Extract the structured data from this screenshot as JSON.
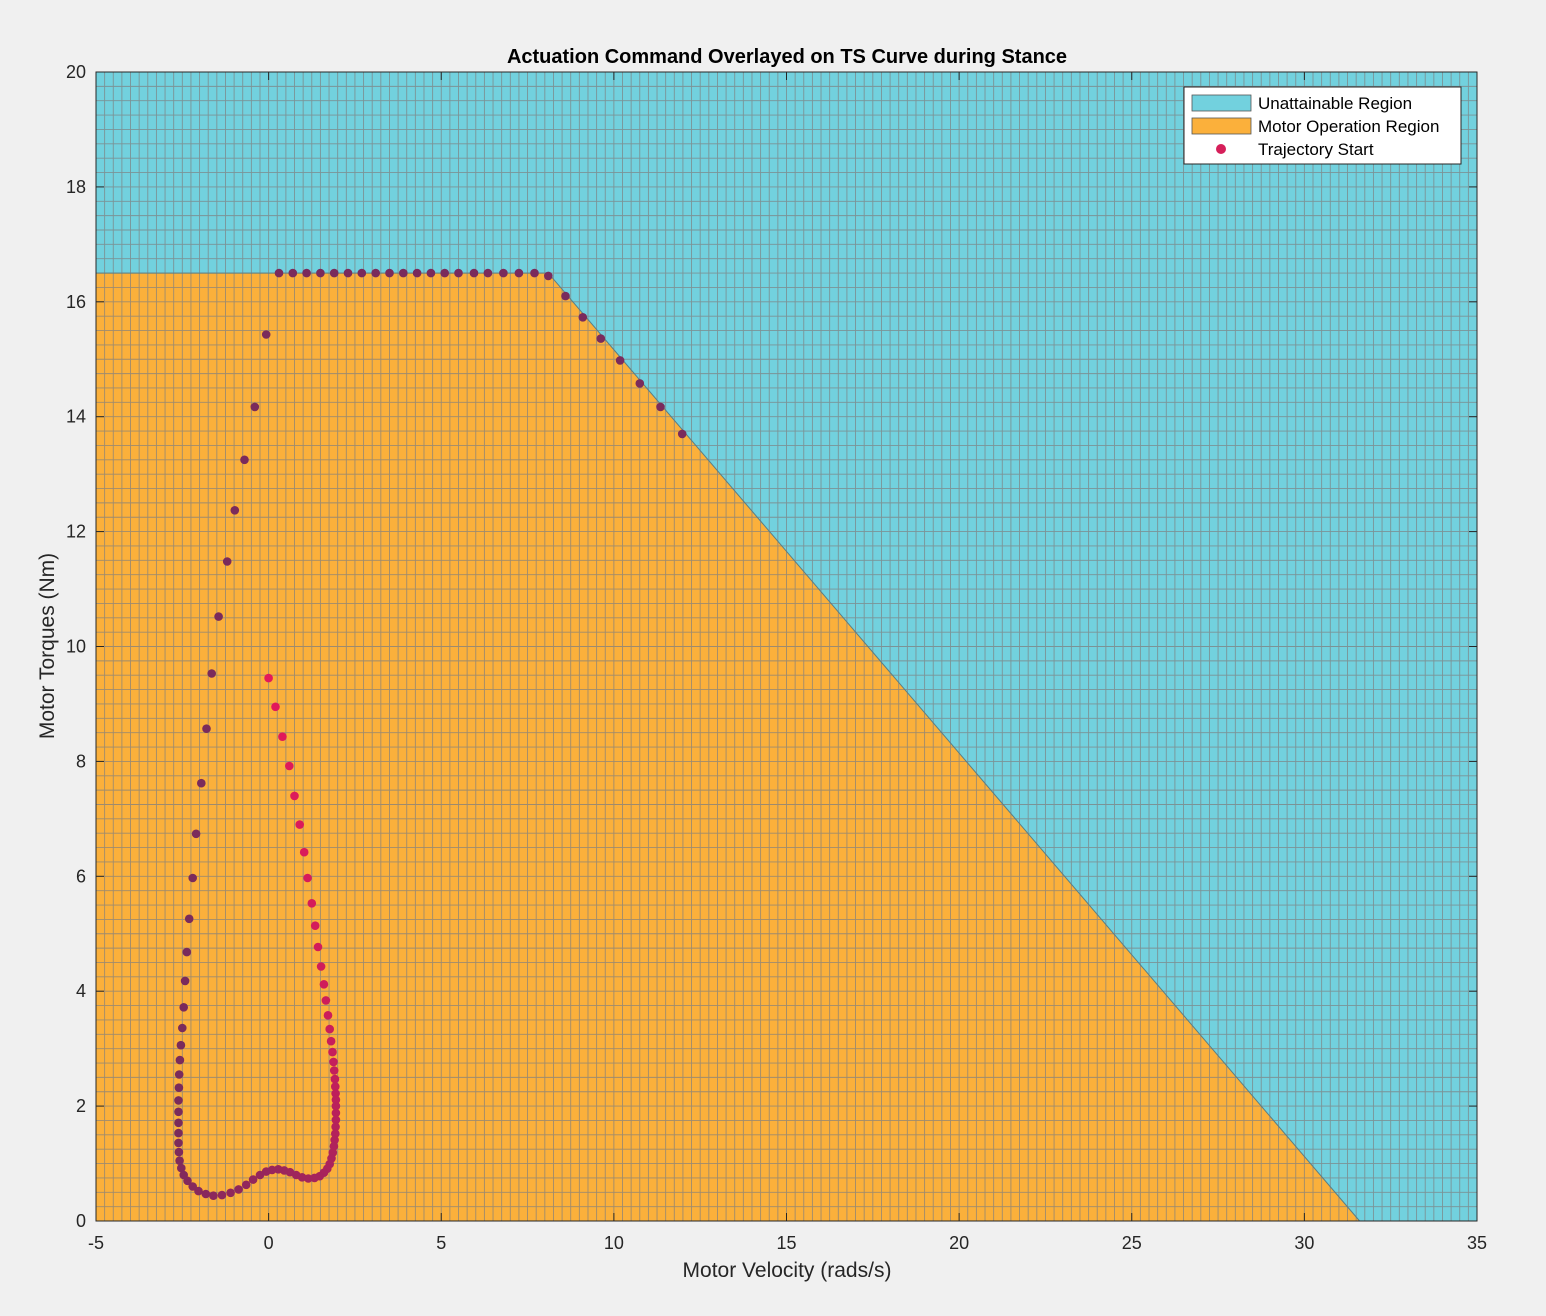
{
  "chart_data": {
    "type": "scatter",
    "title": "Actuation Command Overlayed on TS Curve during Stance",
    "xlabel": "Motor Velocity (rads/s)",
    "ylabel": "Motor Torques (Nm)",
    "xlim": [
      -5,
      35
    ],
    "ylim": [
      0,
      20
    ],
    "xticks": [
      -5,
      0,
      5,
      10,
      15,
      20,
      25,
      30,
      35
    ],
    "yticks": [
      0,
      2,
      4,
      6,
      8,
      10,
      12,
      14,
      16,
      18,
      20
    ],
    "grid": true,
    "legend": {
      "placement": "top-right",
      "entries": [
        {
          "label": "Unattainable Region",
          "color": "#72d1de",
          "kind": "patch"
        },
        {
          "label": "Motor Operation Region",
          "color": "#fbb03b",
          "kind": "patch"
        },
        {
          "label": "Trajectory Start",
          "color": "#d61f5a",
          "kind": "marker"
        }
      ]
    },
    "regions": [
      {
        "name": "Unattainable Region",
        "color": "#72d1de",
        "boundary": [
          [
            -5,
            20
          ],
          [
            35,
            20
          ],
          [
            35,
            0
          ]
        ]
      },
      {
        "name": "Motor Operation Region",
        "color": "#fbb03b",
        "boundary": [
          [
            -5,
            0
          ],
          [
            -5,
            16.5
          ],
          [
            8.1,
            16.5
          ],
          [
            31.6,
            0
          ]
        ]
      }
    ],
    "series": [
      {
        "name": "Trajectory Start",
        "color_start": "#e3195b",
        "color_end": "#7a2b5c",
        "points": [
          [
            0.0,
            9.45
          ],
          [
            0.2,
            8.95
          ],
          [
            0.4,
            8.43
          ],
          [
            0.6,
            7.92
          ],
          [
            0.75,
            7.4
          ],
          [
            0.9,
            6.9
          ],
          [
            1.03,
            6.42
          ],
          [
            1.13,
            5.97
          ],
          [
            1.25,
            5.53
          ],
          [
            1.35,
            5.14
          ],
          [
            1.43,
            4.77
          ],
          [
            1.52,
            4.43
          ],
          [
            1.6,
            4.12
          ],
          [
            1.66,
            3.84
          ],
          [
            1.72,
            3.58
          ],
          [
            1.77,
            3.34
          ],
          [
            1.81,
            3.13
          ],
          [
            1.85,
            2.94
          ],
          [
            1.88,
            2.77
          ],
          [
            1.9,
            2.62
          ],
          [
            1.92,
            2.47
          ],
          [
            1.93,
            2.34
          ],
          [
            1.94,
            2.22
          ],
          [
            1.95,
            2.11
          ],
          [
            1.95,
            2.0
          ],
          [
            1.95,
            1.88
          ],
          [
            1.95,
            1.76
          ],
          [
            1.94,
            1.64
          ],
          [
            1.93,
            1.52
          ],
          [
            1.91,
            1.41
          ],
          [
            1.89,
            1.3
          ],
          [
            1.86,
            1.19
          ],
          [
            1.82,
            1.09
          ],
          [
            1.77,
            0.99
          ],
          [
            1.7,
            0.91
          ],
          [
            1.6,
            0.84
          ],
          [
            1.48,
            0.78
          ],
          [
            1.33,
            0.75
          ],
          [
            1.15,
            0.74
          ],
          [
            0.97,
            0.76
          ],
          [
            0.8,
            0.8
          ],
          [
            0.62,
            0.85
          ],
          [
            0.45,
            0.88
          ],
          [
            0.28,
            0.9
          ],
          [
            0.1,
            0.89
          ],
          [
            -0.07,
            0.86
          ],
          [
            -0.25,
            0.8
          ],
          [
            -0.45,
            0.72
          ],
          [
            -0.65,
            0.63
          ],
          [
            -0.87,
            0.55
          ],
          [
            -1.1,
            0.49
          ],
          [
            -1.35,
            0.45
          ],
          [
            -1.6,
            0.44
          ],
          [
            -1.82,
            0.47
          ],
          [
            -2.03,
            0.52
          ],
          [
            -2.2,
            0.6
          ],
          [
            -2.35,
            0.7
          ],
          [
            -2.46,
            0.8
          ],
          [
            -2.53,
            0.92
          ],
          [
            -2.58,
            1.05
          ],
          [
            -2.6,
            1.2
          ],
          [
            -2.61,
            1.36
          ],
          [
            -2.61,
            1.53
          ],
          [
            -2.61,
            1.71
          ],
          [
            -2.61,
            1.9
          ],
          [
            -2.61,
            2.1
          ],
          [
            -2.6,
            2.32
          ],
          [
            -2.59,
            2.55
          ],
          [
            -2.57,
            2.8
          ],
          [
            -2.54,
            3.06
          ],
          [
            -2.5,
            3.36
          ],
          [
            -2.46,
            3.72
          ],
          [
            -2.42,
            4.18
          ],
          [
            -2.37,
            4.68
          ],
          [
            -2.3,
            5.26
          ],
          [
            -2.2,
            5.97
          ],
          [
            -2.1,
            6.74
          ],
          [
            -1.95,
            7.62
          ],
          [
            -1.8,
            8.57
          ],
          [
            -1.65,
            9.53
          ],
          [
            -1.45,
            10.52
          ],
          [
            -1.2,
            11.48
          ],
          [
            -0.98,
            12.37
          ],
          [
            -0.7,
            13.25
          ],
          [
            -0.4,
            14.17
          ],
          [
            -0.07,
            15.43
          ],
          [
            0.3,
            16.5
          ],
          [
            0.7,
            16.5
          ],
          [
            1.1,
            16.5
          ],
          [
            1.5,
            16.5
          ],
          [
            1.9,
            16.5
          ],
          [
            2.3,
            16.5
          ],
          [
            2.7,
            16.5
          ],
          [
            3.1,
            16.5
          ],
          [
            3.5,
            16.5
          ],
          [
            3.9,
            16.5
          ],
          [
            4.3,
            16.5
          ],
          [
            4.7,
            16.5
          ],
          [
            5.1,
            16.5
          ],
          [
            5.5,
            16.5
          ],
          [
            5.95,
            16.5
          ],
          [
            6.35,
            16.5
          ],
          [
            6.8,
            16.5
          ],
          [
            7.25,
            16.5
          ],
          [
            7.7,
            16.5
          ],
          [
            8.1,
            16.45
          ],
          [
            8.6,
            16.1
          ],
          [
            9.1,
            15.73
          ],
          [
            9.62,
            15.36
          ],
          [
            10.18,
            14.98
          ],
          [
            10.75,
            14.58
          ],
          [
            11.35,
            14.17
          ],
          [
            11.98,
            13.7
          ]
        ]
      }
    ]
  }
}
